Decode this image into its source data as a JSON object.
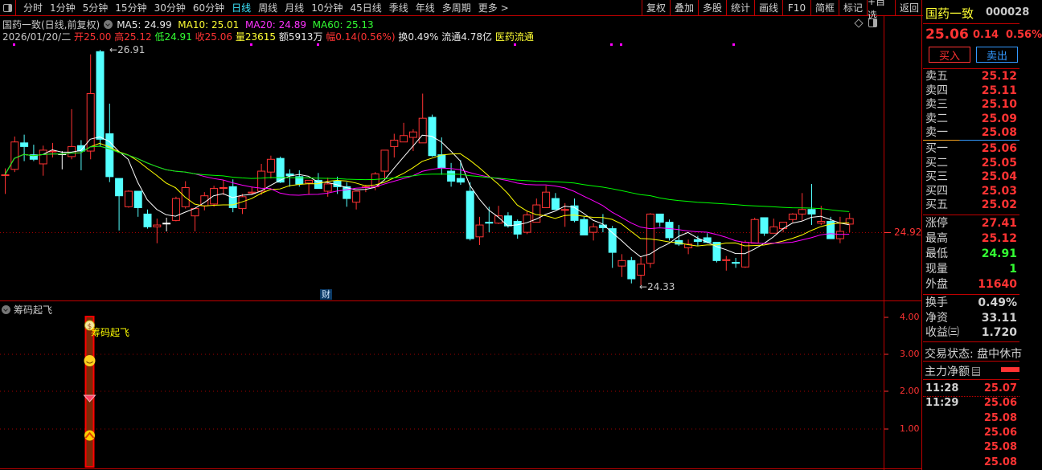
{
  "toolbar": {
    "periods": [
      "分时",
      "1分钟",
      "5分钟",
      "15分钟",
      "30分钟",
      "60分钟",
      "日线",
      "周线",
      "月线",
      "10分钟",
      "45日线",
      "季线",
      "年线",
      "多周期",
      "更多 >"
    ],
    "active_period": "日线",
    "actions": [
      "复权",
      "叠加",
      "多股",
      "统计",
      "画线",
      "F10",
      "简框",
      "标记",
      "+自选",
      "返回"
    ]
  },
  "chart": {
    "title": "国药一致(日线,前复权)",
    "ma": {
      "ma5": "MA5: 24.99",
      "ma10": "MA10: 25.01",
      "ma20": "MA20: 24.89",
      "ma60": "MA60: 25.13"
    },
    "info": {
      "date": "2026/01/20/二",
      "open_l": "开",
      "open": "25.00",
      "high_l": "高",
      "high": "25.12",
      "low_l": "低",
      "low": "24.91",
      "close_l": "收",
      "close": "25.06",
      "vol_l": "量",
      "vol": "23615",
      "amt_l": "额",
      "amt": "5913万",
      "amp_l": "幅",
      "amp": "0.14(0.56%)",
      "turn": "换0.49%",
      "float": "流通4.78亿",
      "sector": "医药流通"
    },
    "max_mark": "26.91",
    "min_mark": "24.33",
    "current_price_label": "24.92",
    "finance_badge": "财",
    "colors": {
      "up": "#ff3333",
      "down": "#54ffff",
      "ma5": "#ffffff",
      "ma10": "#ffff00",
      "ma20": "#ff00ff",
      "ma60": "#00ff00"
    }
  },
  "chart_data": {
    "type": "candlestick",
    "ylim": [
      24.33,
      26.91
    ],
    "ohlc": [
      [
        25.54,
        25.61,
        25.33,
        25.54
      ],
      [
        25.6,
        25.96,
        25.57,
        25.9
      ],
      [
        25.89,
        25.98,
        25.69,
        25.85
      ],
      [
        25.76,
        25.87,
        25.69,
        25.71
      ],
      [
        25.66,
        25.86,
        25.53,
        25.81
      ],
      [
        25.8,
        25.89,
        25.73,
        25.8
      ],
      [
        25.77,
        25.8,
        25.6,
        25.77
      ],
      [
        25.74,
        26.26,
        25.71,
        25.85
      ],
      [
        25.86,
        25.92,
        25.59,
        25.8
      ],
      [
        25.8,
        26.86,
        25.71,
        26.43
      ],
      [
        26.89,
        26.91,
        25.85,
        25.93
      ],
      [
        25.99,
        26.32,
        25.46,
        25.52
      ],
      [
        25.5,
        25.5,
        24.93,
        25.31
      ],
      [
        25.19,
        25.37,
        25.18,
        25.36
      ],
      [
        25.36,
        25.36,
        25.08,
        25.18
      ],
      [
        25.11,
        25.16,
        24.95,
        24.97
      ],
      [
        24.97,
        25.06,
        24.79,
        24.99
      ],
      [
        25.01,
        25.07,
        24.92,
        25.01
      ],
      [
        25.04,
        25.3,
        25.03,
        25.28
      ],
      [
        25.19,
        25.47,
        25.17,
        25.4
      ],
      [
        25.09,
        25.17,
        24.92,
        25.17
      ],
      [
        25.2,
        25.35,
        25.15,
        25.31
      ],
      [
        25.22,
        25.42,
        25.19,
        25.39
      ],
      [
        25.4,
        25.48,
        25.32,
        25.4
      ],
      [
        25.41,
        25.49,
        25.13,
        25.18
      ],
      [
        25.17,
        25.33,
        25.11,
        25.3
      ],
      [
        25.34,
        25.41,
        25.32,
        25.35
      ],
      [
        25.36,
        25.66,
        25.32,
        25.58
      ],
      [
        25.57,
        25.75,
        25.5,
        25.71
      ],
      [
        25.72,
        25.74,
        25.45,
        25.46
      ],
      [
        25.55,
        25.6,
        25.41,
        25.53
      ],
      [
        25.52,
        25.59,
        25.41,
        25.44
      ],
      [
        25.45,
        25.48,
        25.32,
        25.48
      ],
      [
        25.48,
        25.56,
        25.39,
        25.39
      ],
      [
        25.36,
        25.51,
        25.3,
        25.44
      ],
      [
        25.47,
        25.52,
        25.33,
        25.41
      ],
      [
        25.41,
        25.46,
        25.19,
        25.28
      ],
      [
        25.24,
        25.36,
        25.16,
        25.36
      ],
      [
        25.4,
        25.43,
        25.35,
        25.41
      ],
      [
        25.41,
        25.57,
        25.37,
        25.55
      ],
      [
        25.58,
        25.81,
        25.5,
        25.81
      ],
      [
        25.85,
        25.99,
        25.73,
        25.92
      ],
      [
        25.9,
        26.11,
        25.9,
        25.97
      ],
      [
        25.95,
        26.04,
        25.8,
        26.01
      ],
      [
        25.89,
        26.43,
        25.89,
        26.16
      ],
      [
        26.17,
        26.2,
        25.74,
        25.75
      ],
      [
        25.76,
        25.95,
        25.54,
        25.62
      ],
      [
        25.58,
        25.67,
        25.41,
        25.47
      ],
      [
        25.5,
        25.7,
        25.43,
        25.46
      ],
      [
        25.36,
        25.46,
        24.82,
        24.84
      ],
      [
        24.86,
        25.08,
        24.77,
        24.99
      ],
      [
        25.02,
        25.19,
        24.91,
        25.01
      ],
      [
        25.01,
        25.2,
        25.0,
        25.09
      ],
      [
        25.09,
        25.13,
        24.96,
        24.98
      ],
      [
        25.03,
        25.05,
        24.84,
        24.89
      ],
      [
        24.91,
        25.14,
        24.89,
        25.1
      ],
      [
        25.02,
        25.28,
        25.02,
        25.21
      ],
      [
        25.18,
        25.42,
        25.18,
        25.35
      ],
      [
        25.28,
        25.34,
        25.16,
        25.16
      ],
      [
        25.16,
        25.23,
        24.97,
        25.16
      ],
      [
        25.2,
        25.28,
        25.02,
        25.04
      ],
      [
        25.05,
        25.08,
        24.88,
        24.88
      ],
      [
        24.91,
        25.01,
        24.82,
        24.97
      ],
      [
        24.99,
        25.11,
        24.91,
        24.96
      ],
      [
        24.95,
        24.98,
        24.52,
        24.69
      ],
      [
        24.54,
        24.67,
        24.42,
        24.6
      ],
      [
        24.6,
        24.64,
        24.35,
        24.4
      ],
      [
        24.44,
        24.64,
        24.33,
        24.56
      ],
      [
        24.57,
        25.12,
        24.52,
        25.11
      ],
      [
        25.11,
        25.11,
        24.97,
        25.02
      ],
      [
        25.02,
        25.05,
        24.82,
        24.85
      ],
      [
        24.82,
        24.99,
        24.76,
        24.78
      ],
      [
        24.74,
        24.83,
        24.67,
        24.78
      ],
      [
        24.83,
        24.87,
        24.76,
        24.81
      ],
      [
        24.85,
        24.9,
        24.79,
        24.8
      ],
      [
        24.8,
        24.8,
        24.58,
        24.6
      ],
      [
        24.6,
        24.65,
        24.49,
        24.61
      ],
      [
        24.58,
        24.63,
        24.52,
        24.57
      ],
      [
        24.53,
        24.82,
        24.52,
        24.8
      ],
      [
        24.79,
        25.07,
        24.79,
        25.05
      ],
      [
        25.07,
        25.07,
        24.87,
        24.9
      ],
      [
        24.9,
        25.06,
        24.9,
        24.97
      ],
      [
        24.95,
        25.02,
        24.91,
        25.02
      ],
      [
        25.05,
        25.12,
        25.02,
        25.11
      ],
      [
        25.11,
        25.34,
        25.04,
        25.16
      ],
      [
        25.16,
        25.44,
        24.99,
        25.11
      ],
      [
        25.01,
        25.2,
        24.99,
        25.03
      ],
      [
        25.03,
        25.08,
        24.84,
        24.84
      ],
      [
        24.84,
        25.08,
        24.79,
        24.92
      ],
      [
        25.0,
        25.12,
        24.91,
        25.06
      ]
    ]
  },
  "indicator": {
    "name": "筹码起飞",
    "signal_text": "筹码起飞",
    "axis": [
      "4.00",
      "3.00",
      "2.00",
      "1.00"
    ],
    "icons": [
      "money-bag-icon",
      "smiley-icon",
      "gem-icon",
      "up-arrow-icon"
    ]
  },
  "quote": {
    "name": "国药一致",
    "code": "000028",
    "price": "25.06",
    "change": "0.14",
    "pct": "0.56%",
    "buy_label": "买入",
    "sell_label": "卖出",
    "asks": [
      {
        "l": "卖五",
        "v": "25.12"
      },
      {
        "l": "卖四",
        "v": "25.11"
      },
      {
        "l": "卖三",
        "v": "25.10"
      },
      {
        "l": "卖二",
        "v": "25.09"
      },
      {
        "l": "卖一",
        "v": "25.08"
      }
    ],
    "bids": [
      {
        "l": "买一",
        "v": "25.06"
      },
      {
        "l": "买二",
        "v": "25.05"
      },
      {
        "l": "买三",
        "v": "25.04"
      },
      {
        "l": "买四",
        "v": "25.03"
      },
      {
        "l": "买五",
        "v": "25.02"
      }
    ],
    "stats": [
      {
        "l": "涨停",
        "v": "27.41",
        "c": "#ff3333"
      },
      {
        "l": "最高",
        "v": "25.12",
        "c": "#ff3333"
      },
      {
        "l": "最低",
        "v": "24.91",
        "c": "#33ff33"
      },
      {
        "l": "现量",
        "v": "1",
        "c": "#33ff33"
      },
      {
        "l": "外盘",
        "v": "11640",
        "c": "#ff3333"
      }
    ],
    "fund": [
      {
        "l": "换手",
        "v": "0.49%"
      },
      {
        "l": "净资",
        "v": "33.11"
      },
      {
        "l": "收益㈢",
        "v": "1.720"
      }
    ],
    "status": "交易状态: 盘中休市",
    "main_net": "主力净额",
    "ticks": [
      {
        "t": "11:28",
        "p": "25.07"
      },
      {
        "t": "11:29",
        "p": "25.06"
      },
      {
        "t": "",
        "p": "25.08"
      },
      {
        "t": "",
        "p": "25.06"
      },
      {
        "t": "",
        "p": "25.08"
      },
      {
        "t": "",
        "p": "25.08"
      }
    ]
  }
}
